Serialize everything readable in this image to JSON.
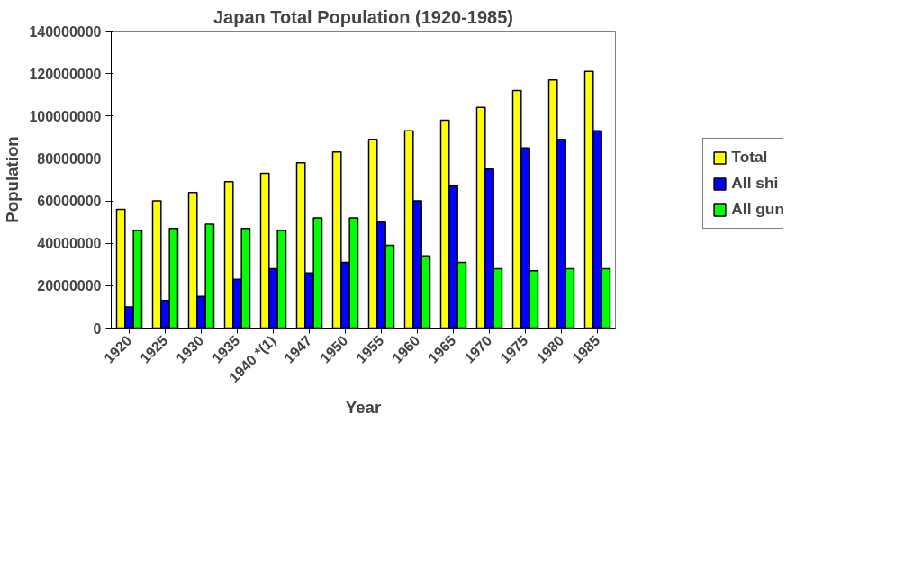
{
  "chart_data": {
    "type": "bar",
    "title": "Japan Total Population (1920-1985)",
    "xlabel": "Year",
    "ylabel": "Population",
    "categories": [
      "1920",
      "1925",
      "1930",
      "1935",
      "1940 *(1)",
      "1947",
      "1950",
      "1955",
      "1960",
      "1965",
      "1970",
      "1975",
      "1980",
      "1985"
    ],
    "series": [
      {
        "name": "Total",
        "color": "#ffff00",
        "values": [
          56000000,
          60000000,
          64000000,
          69000000,
          73000000,
          78000000,
          83000000,
          89000000,
          93000000,
          98000000,
          104000000,
          112000000,
          117000000,
          121000000
        ]
      },
      {
        "name": "All shi",
        "color": "#0000ff",
        "values": [
          10000000,
          13000000,
          15000000,
          23000000,
          28000000,
          26000000,
          31000000,
          50000000,
          60000000,
          67000000,
          75000000,
          85000000,
          89000000,
          93000000
        ]
      },
      {
        "name": "All gun",
        "color": "#00ff00",
        "values": [
          46000000,
          47000000,
          49000000,
          47000000,
          46000000,
          52000000,
          52000000,
          39000000,
          34000000,
          31000000,
          28000000,
          27000000,
          28000000,
          28000000
        ]
      }
    ],
    "ylim": [
      0,
      140000000
    ],
    "yticks": [
      0,
      20000000,
      40000000,
      60000000,
      80000000,
      100000000,
      120000000,
      140000000
    ],
    "grid": false,
    "legend": "right"
  }
}
